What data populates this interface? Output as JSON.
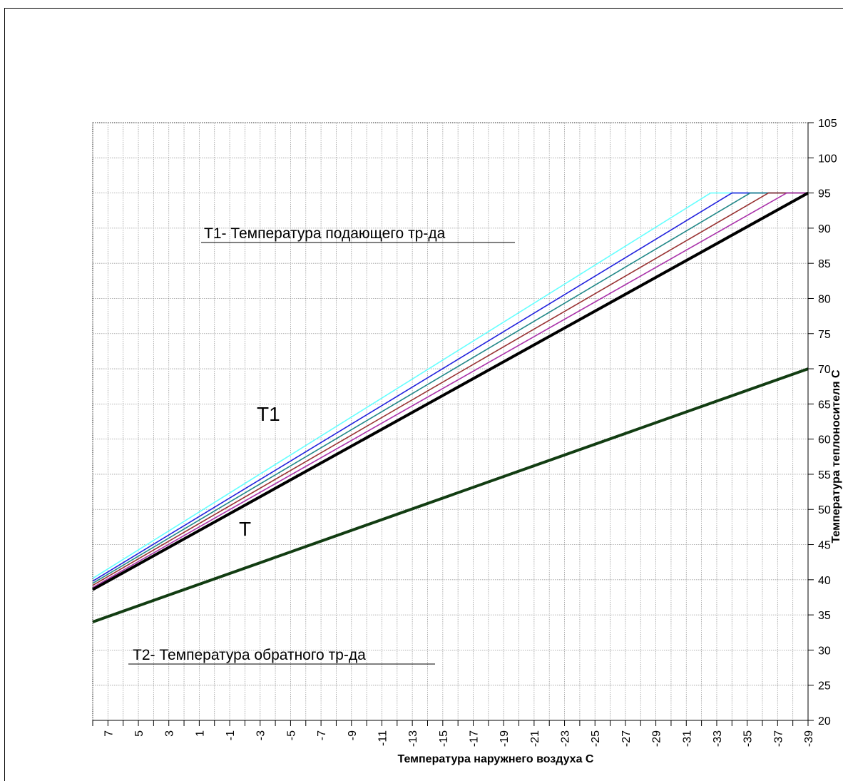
{
  "chart_data": {
    "type": "line",
    "title": "",
    "xlabel": "Температура наружнего воздуха С",
    "ylabel": "Температура теплоносителя С",
    "x_tick_labels": [
      "7",
      "5",
      "3",
      "1",
      "-1",
      "-3",
      "-5",
      "-7",
      "-9",
      "-11",
      "-13",
      "-15",
      "-17",
      "-19",
      "-21",
      "-23",
      "-25",
      "-27",
      "-29",
      "-31",
      "-33",
      "-35",
      "-37",
      "-39"
    ],
    "y_tick_labels": [
      "105",
      "100",
      "95",
      "90",
      "85",
      "80",
      "75",
      "70",
      "65",
      "60",
      "55",
      "50",
      "45",
      "40",
      "35",
      "30",
      "25",
      "20"
    ],
    "xlim": [
      8,
      -39
    ],
    "ylim": [
      20,
      105
    ],
    "grid": true,
    "annotations": {
      "t1_caption": "Т1-  Температура подающего тр-да",
      "t2_caption": "Т2-  Температура обратного тр-да",
      "t1_label": "Т1",
      "t_label": "Т"
    },
    "series": [
      {
        "color": "#66ffff",
        "values": [
          [
            8,
            40.2
          ],
          [
            -32.6,
            95
          ],
          [
            -39,
            95
          ]
        ]
      },
      {
        "color": "#2222dd",
        "values": [
          [
            8,
            39.8
          ],
          [
            -34.0,
            95
          ],
          [
            -39,
            95
          ]
        ]
      },
      {
        "color": "#228888",
        "values": [
          [
            8,
            39.5
          ],
          [
            -35.2,
            95
          ],
          [
            -39,
            95
          ]
        ]
      },
      {
        "color": "#993333",
        "values": [
          [
            8,
            39.2
          ],
          [
            -36.4,
            95
          ],
          [
            -39,
            95
          ]
        ]
      },
      {
        "color": "#aa33aa",
        "values": [
          [
            8,
            38.9
          ],
          [
            -37.6,
            95
          ],
          [
            -39,
            95
          ]
        ]
      },
      {
        "color": "#000000",
        "values": [
          [
            8,
            38.6
          ],
          [
            -39,
            95
          ]
        ]
      },
      {
        "color": "#123d12",
        "values": [
          [
            8,
            34
          ],
          [
            -39,
            70
          ]
        ]
      }
    ]
  }
}
